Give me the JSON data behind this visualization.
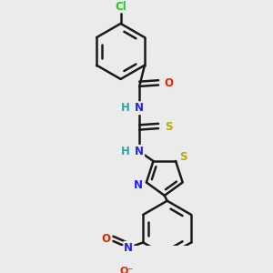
{
  "bg_color": "#ebebeb",
  "bond_color": "#1a1a1a",
  "bond_width": 1.8,
  "atom_colors": {
    "Cl": "#22cc22",
    "O": "#ee2200",
    "N": "#2222ff",
    "S": "#bbaa00",
    "H": "#22aaaa",
    "C": "#1a1a1a"
  },
  "font_size": 8.5,
  "fig_width": 3.0,
  "fig_height": 3.0,
  "dpi": 100
}
